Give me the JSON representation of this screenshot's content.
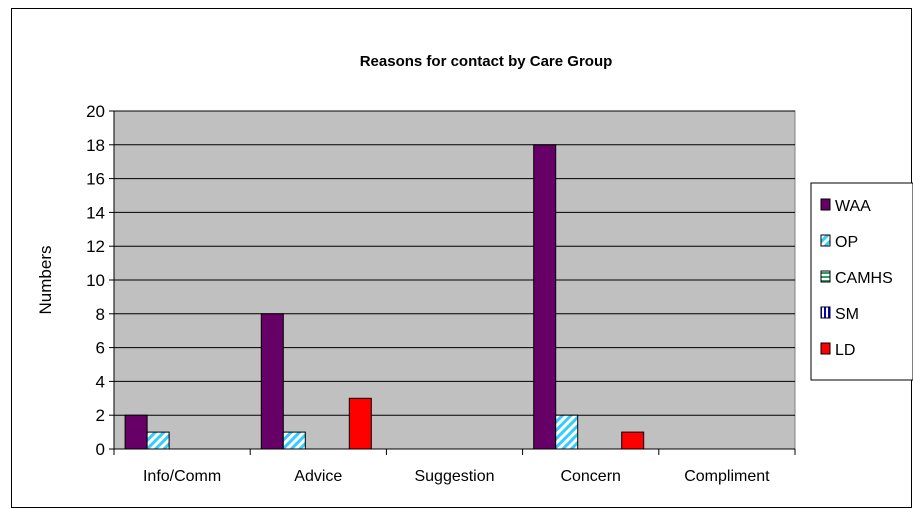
{
  "chart_data": {
    "type": "bar",
    "title": "Reasons for contact by Care Group",
    "xlabel": "",
    "ylabel": "Numbers",
    "ylim": [
      0,
      20
    ],
    "yticks": [
      0,
      2,
      4,
      6,
      8,
      10,
      12,
      14,
      16,
      18,
      20
    ],
    "grid": true,
    "legend_position": "right",
    "categories": [
      "Info/Comm",
      "Advice",
      "Suggestion",
      "Concern",
      "Compliment"
    ],
    "series": [
      {
        "name": "WAA",
        "values": [
          2,
          8,
          0,
          18,
          0
        ],
        "color": "#660066",
        "pattern": "solid"
      },
      {
        "name": "OP",
        "values": [
          1,
          1,
          0,
          2,
          0
        ],
        "color": "#33ccff",
        "pattern": "diagonal"
      },
      {
        "name": "CAMHS",
        "values": [
          0,
          0,
          0,
          0,
          0
        ],
        "color": "#339966",
        "pattern": "horizontal"
      },
      {
        "name": "SM",
        "values": [
          0,
          0,
          0,
          0,
          0
        ],
        "color": "#0000cc",
        "pattern": "vertical"
      },
      {
        "name": "LD",
        "values": [
          0,
          3,
          0,
          1,
          0
        ],
        "color": "#ff0000",
        "pattern": "solid"
      }
    ],
    "plot_background": "#c0c0c0"
  }
}
